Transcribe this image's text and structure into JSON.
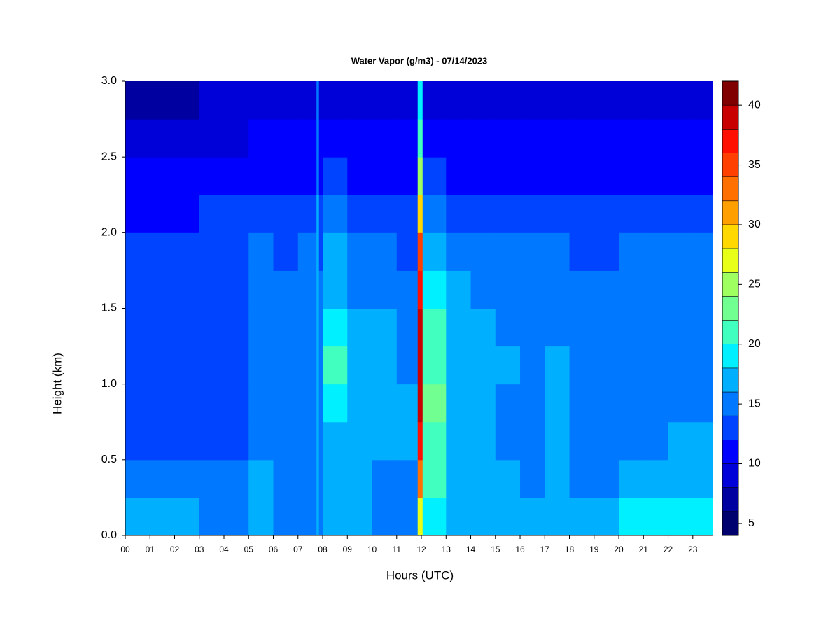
{
  "chart_data": {
    "type": "heatmap",
    "title": "Water Vapor (g/m3) - 07/14/2023",
    "xlabel": "Hours (UTC)",
    "ylabel": "Height (km)",
    "xlim": [
      0,
      23.8
    ],
    "ylim": [
      0,
      3
    ],
    "xticks": [
      {
        "value": 0,
        "label": "00"
      },
      {
        "value": 1,
        "label": "01"
      },
      {
        "value": 2,
        "label": "02"
      },
      {
        "value": 3,
        "label": "03"
      },
      {
        "value": 4,
        "label": "04"
      },
      {
        "value": 5,
        "label": "05"
      },
      {
        "value": 6,
        "label": "06"
      },
      {
        "value": 7,
        "label": "07"
      },
      {
        "value": 8,
        "label": "08"
      },
      {
        "value": 9,
        "label": "09"
      },
      10,
      11,
      12,
      13,
      14,
      15,
      16,
      17,
      18,
      19,
      20,
      21,
      22,
      23
    ],
    "yticks": [
      {
        "value": 0,
        "label": "0.0"
      },
      0.5,
      {
        "value": 1,
        "label": "1.0"
      },
      1.5,
      {
        "value": 2,
        "label": "2.0"
      },
      2.5,
      {
        "value": 3,
        "label": "3.0"
      }
    ],
    "xbins": [
      0,
      1,
      2,
      3,
      4,
      5,
      6,
      7,
      7.75,
      7.85,
      8,
      9,
      10,
      11,
      11.85,
      12.05,
      13,
      14,
      15,
      16,
      17,
      18,
      19,
      20,
      21,
      22,
      23,
      23.8
    ],
    "ybins": [
      0,
      0.25,
      0.5,
      0.75,
      1,
      1.25,
      1.5,
      1.75,
      2,
      2.25,
      2.5,
      2.75,
      3
    ],
    "z": [
      [
        17,
        15,
        13,
        13,
        13,
        13,
        13,
        13,
        11,
        11,
        9,
        7
      ],
      [
        17,
        15,
        13,
        13,
        13,
        13,
        13,
        13,
        11,
        11,
        9,
        7
      ],
      [
        17,
        15,
        13,
        13,
        13,
        13,
        13,
        13,
        11,
        11,
        9,
        7
      ],
      [
        15,
        15,
        13,
        13,
        13,
        13,
        13,
        13,
        13,
        11,
        9,
        9
      ],
      [
        15,
        15,
        13,
        13,
        13,
        13,
        13,
        13,
        13,
        11,
        9,
        9
      ],
      [
        17,
        17,
        15,
        15,
        15,
        15,
        15,
        15,
        13,
        11,
        11,
        9
      ],
      [
        15,
        15,
        15,
        15,
        15,
        15,
        15,
        13,
        13,
        11,
        11,
        9
      ],
      [
        15,
        15,
        15,
        15,
        15,
        15,
        15,
        15,
        13,
        11,
        11,
        9
      ],
      [
        17,
        17,
        17,
        17,
        17,
        17,
        17,
        17,
        17,
        15,
        15,
        15
      ],
      [
        15,
        15,
        15,
        15,
        15,
        15,
        15,
        13,
        13,
        11,
        11,
        9
      ],
      [
        17,
        17,
        17,
        19,
        21,
        19,
        17,
        17,
        15,
        13,
        11,
        9
      ],
      [
        17,
        17,
        17,
        17,
        17,
        17,
        15,
        15,
        13,
        11,
        11,
        9
      ],
      [
        15,
        15,
        17,
        17,
        17,
        17,
        15,
        15,
        13,
        11,
        11,
        9
      ],
      [
        15,
        15,
        17,
        17,
        15,
        15,
        15,
        13,
        13,
        11,
        11,
        9
      ],
      [
        27,
        33,
        37,
        39,
        39,
        39,
        37,
        35,
        29,
        25,
        21,
        19
      ],
      [
        19,
        21,
        21,
        23,
        21,
        21,
        19,
        17,
        15,
        13,
        11,
        9
      ],
      [
        17,
        17,
        17,
        17,
        17,
        17,
        17,
        15,
        13,
        11,
        11,
        9
      ],
      [
        17,
        17,
        17,
        17,
        17,
        17,
        15,
        15,
        13,
        11,
        11,
        9
      ],
      [
        17,
        17,
        15,
        15,
        17,
        15,
        15,
        15,
        13,
        11,
        11,
        9
      ],
      [
        17,
        15,
        15,
        15,
        15,
        15,
        15,
        15,
        13,
        11,
        11,
        9
      ],
      [
        17,
        17,
        17,
        17,
        17,
        15,
        15,
        15,
        13,
        11,
        11,
        9
      ],
      [
        17,
        15,
        15,
        15,
        15,
        15,
        15,
        13,
        13,
        11,
        11,
        9
      ],
      [
        17,
        15,
        15,
        15,
        15,
        15,
        15,
        13,
        13,
        11,
        11,
        9
      ],
      [
        19,
        17,
        15,
        15,
        15,
        15,
        15,
        15,
        13,
        11,
        11,
        9
      ],
      [
        19,
        17,
        15,
        15,
        15,
        15,
        15,
        15,
        13,
        11,
        11,
        9
      ],
      [
        19,
        17,
        17,
        15,
        15,
        15,
        15,
        15,
        13,
        11,
        11,
        9
      ],
      [
        19,
        17,
        17,
        15,
        15,
        15,
        15,
        15,
        13,
        11,
        11,
        9
      ]
    ],
    "levels": [
      4,
      6,
      8,
      10,
      12,
      14,
      16,
      18,
      20,
      22,
      24,
      26,
      28,
      30,
      32,
      34,
      36,
      38,
      40,
      42
    ],
    "colors": [
      "#00006e",
      "#0000a0",
      "#0000d8",
      "#0000ff",
      "#0044ff",
      "#0078ff",
      "#00b0ff",
      "#00f0ff",
      "#40ffbf",
      "#70ff90",
      "#a0ff60",
      "#e8ff18",
      "#ffd800",
      "#ffa000",
      "#ff7000",
      "#ff4000",
      "#ff1000",
      "#c80000",
      "#800000"
    ],
    "colorbar_ticks": [
      5,
      10,
      15,
      20,
      25,
      30,
      35,
      40
    ]
  }
}
